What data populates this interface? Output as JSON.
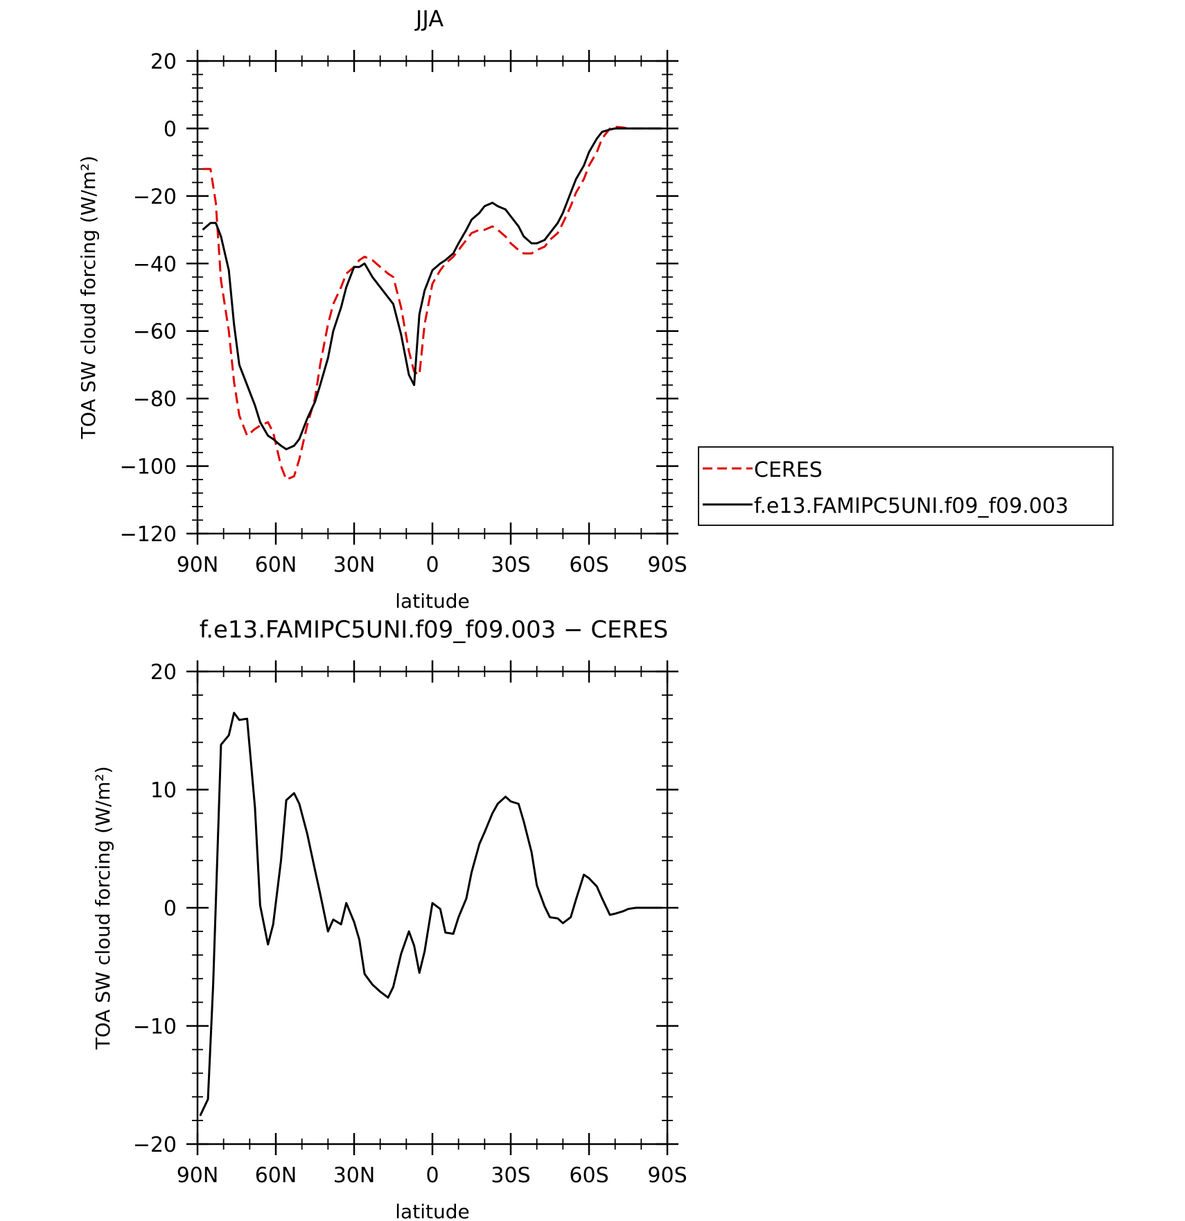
{
  "chart_data": [
    {
      "type": "line",
      "title": "JJA",
      "xlabel": "latitude",
      "ylabel": "TOA SW cloud forcing (W/m²)",
      "xlim": [
        90,
        -90
      ],
      "ylim": [
        -120,
        20
      ],
      "x_ticks": [
        {
          "value": 90,
          "label": "90N"
        },
        {
          "value": 60,
          "label": "60N"
        },
        {
          "value": 30,
          "label": "30N"
        },
        {
          "value": 0,
          "label": "0"
        },
        {
          "value": -30,
          "label": "30S"
        },
        {
          "value": -60,
          "label": "60S"
        },
        {
          "value": -90,
          "label": "90S"
        }
      ],
      "y_ticks": [
        20,
        0,
        -20,
        -40,
        -60,
        -80,
        -100,
        -120
      ],
      "legend": "right",
      "series": [
        {
          "name": "CERES",
          "color": "#e00000",
          "style": "dashed",
          "x": [
            88,
            85,
            83,
            81,
            78,
            76,
            74,
            71,
            68,
            66,
            63,
            61,
            58,
            56,
            53,
            51,
            48,
            45,
            43,
            40,
            38,
            35,
            33,
            30,
            28,
            26,
            23,
            20,
            17,
            15,
            12,
            9,
            7,
            5,
            3,
            0,
            -3,
            -5,
            -8,
            -10,
            -13,
            -15,
            -18,
            -20,
            -23,
            -25,
            -28,
            -30,
            -33,
            -35,
            -38,
            -40,
            -43,
            -45,
            -48,
            -50,
            -53,
            -55,
            -58,
            -60,
            -63,
            -65,
            -68,
            -70,
            -73,
            -75,
            -78,
            -80,
            -83,
            -85,
            -88
          ],
          "y": [
            -12,
            -12,
            -22,
            -45,
            -60,
            -75,
            -85,
            -91,
            -89,
            -88,
            -87,
            -90,
            -100,
            -104,
            -103,
            -98,
            -88,
            -80,
            -70,
            -58,
            -52,
            -47,
            -43,
            -41,
            -39,
            -38,
            -39,
            -41,
            -43,
            -44,
            -53,
            -66,
            -72,
            -73,
            -58,
            -46,
            -42,
            -40,
            -38,
            -36,
            -33,
            -31,
            -30,
            -30,
            -29,
            -30,
            -32,
            -34,
            -36,
            -37,
            -37,
            -36,
            -35,
            -33,
            -31,
            -28,
            -23,
            -19,
            -15,
            -11,
            -7,
            -3,
            0,
            0.5,
            0.3,
            0,
            0,
            0,
            0,
            0,
            0
          ]
        },
        {
          "name": "f.e13.FAMIPC5UNI.f09_f09.003",
          "color": "#000000",
          "style": "solid",
          "x": [
            88,
            85,
            83,
            81,
            78,
            76,
            74,
            71,
            68,
            66,
            63,
            61,
            58,
            56,
            53,
            51,
            48,
            45,
            43,
            40,
            38,
            35,
            33,
            30,
            28,
            26,
            23,
            20,
            17,
            15,
            12,
            9,
            7,
            5,
            3,
            0,
            -3,
            -5,
            -8,
            -10,
            -13,
            -15,
            -18,
            -20,
            -23,
            -25,
            -28,
            -30,
            -33,
            -35,
            -38,
            -40,
            -43,
            -45,
            -48,
            -50,
            -53,
            -55,
            -58,
            -60,
            -63,
            -65,
            -68,
            -70,
            -73,
            -75,
            -78,
            -80,
            -83,
            -85,
            -88
          ],
          "y": [
            -30,
            -28,
            -28,
            -32,
            -42,
            -58,
            -70,
            -76,
            -82,
            -87,
            -91,
            -92,
            -94,
            -95,
            -94,
            -92,
            -86,
            -81,
            -76,
            -68,
            -60,
            -53,
            -47,
            -41,
            -41,
            -40,
            -44,
            -47,
            -50,
            -52,
            -61,
            -73,
            -76,
            -55,
            -48,
            -42,
            -40,
            -39,
            -37,
            -34,
            -30,
            -27,
            -25,
            -23,
            -22,
            -23,
            -24,
            -26,
            -29,
            -32,
            -34,
            -34,
            -33,
            -31,
            -28,
            -25,
            -19,
            -15,
            -11,
            -7,
            -3,
            -1,
            -0.3,
            0,
            0,
            0,
            0,
            0,
            0,
            0,
            0
          ]
        }
      ]
    },
    {
      "type": "line",
      "title": "f.e13.FAMIPC5UNI.f09_f09.003 − CERES",
      "xlabel": "latitude",
      "ylabel": "TOA SW cloud forcing (W/m²)",
      "xlim": [
        90,
        -90
      ],
      "ylim": [
        -20,
        20
      ],
      "x_ticks": [
        {
          "value": 90,
          "label": "90N"
        },
        {
          "value": 60,
          "label": "60N"
        },
        {
          "value": 30,
          "label": "30N"
        },
        {
          "value": 0,
          "label": "0"
        },
        {
          "value": -30,
          "label": "30S"
        },
        {
          "value": -60,
          "label": "60S"
        },
        {
          "value": -90,
          "label": "90S"
        }
      ],
      "y_ticks": [
        20,
        10,
        0,
        -10,
        -20
      ],
      "series": [
        {
          "color": "#000000",
          "style": "solid",
          "x": [
            89,
            86,
            84,
            81,
            78,
            76,
            74,
            71,
            68,
            66,
            63,
            61,
            58,
            56,
            53,
            51,
            48,
            45,
            43,
            40,
            38,
            35,
            33,
            30,
            28,
            26,
            23,
            20,
            17,
            15,
            12,
            9,
            7,
            5,
            3,
            0,
            -3,
            -5,
            -8,
            -10,
            -13,
            -15,
            -18,
            -20,
            -23,
            -25,
            -28,
            -30,
            -33,
            -35,
            -38,
            -40,
            -43,
            -45,
            -48,
            -50,
            -53,
            -55,
            -58,
            -60,
            -63,
            -65,
            -68,
            -70,
            -73,
            -75,
            -78,
            -80,
            -83,
            -85,
            -88
          ],
          "y": [
            -17.6,
            -16.2,
            -6.5,
            13.8,
            14.6,
            16.5,
            15.9,
            16.0,
            8.5,
            0.2,
            -3.1,
            -1.4,
            4.0,
            9.1,
            9.7,
            8.8,
            6.3,
            3.2,
            1.2,
            -2.0,
            -1.0,
            -1.4,
            0.4,
            -1.2,
            -2.7,
            -5.6,
            -6.5,
            -7.1,
            -7.6,
            -6.7,
            -3.9,
            -2.0,
            -3.2,
            -5.5,
            -3.7,
            0.4,
            -0.1,
            -2.1,
            -2.2,
            -0.8,
            0.8,
            3.0,
            5.4,
            6.4,
            8.0,
            8.8,
            9.4,
            9.0,
            8.8,
            7.3,
            4.7,
            1.9,
            0.1,
            -0.8,
            -0.9,
            -1.3,
            -0.8,
            0.7,
            2.8,
            2.5,
            1.8,
            0.8,
            -0.6,
            -0.5,
            -0.3,
            -0.1,
            0,
            0,
            0,
            0,
            0
          ]
        }
      ]
    }
  ]
}
